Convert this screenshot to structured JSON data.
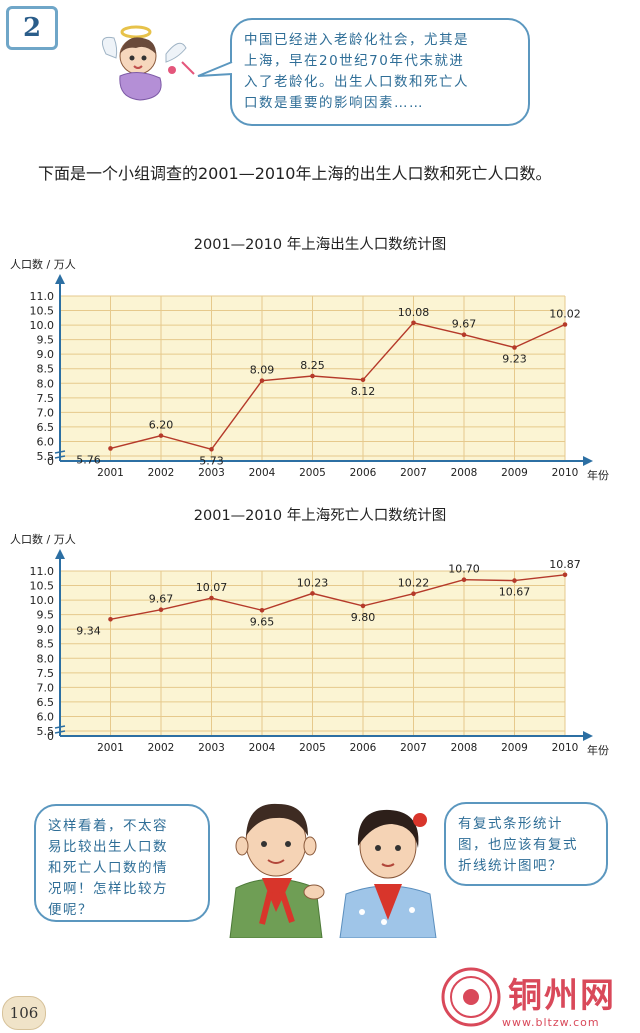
{
  "page": {
    "lesson_number": "2",
    "page_number": "106"
  },
  "top_bubble": {
    "lines": [
      "中国已经进入老龄化社会，尤其是",
      "上海，早在20世纪70年代末就进",
      "入了老龄化。出生人口数和死亡人",
      "口数是重要的影响因素……"
    ]
  },
  "intro_text": "下面是一个小组调查的2001—2010年上海的出生人口数和死亡人口数。",
  "chart_data": [
    {
      "type": "line",
      "title": "2001—2010 年上海出生人口数统计图",
      "ylabel": "人口数 / 万人",
      "xlabel": "年份",
      "categories": [
        "2001",
        "2002",
        "2003",
        "2004",
        "2005",
        "2006",
        "2007",
        "2008",
        "2009",
        "2010"
      ],
      "values": [
        5.76,
        6.2,
        5.73,
        8.09,
        8.25,
        8.12,
        10.08,
        9.67,
        9.23,
        10.02
      ],
      "value_labels": [
        "5.76",
        "6.20",
        "5.73",
        "8.09",
        "8.25",
        "8.12",
        "10.08",
        "9.67",
        "9.23",
        "10.02"
      ],
      "y_ticks": [
        "0",
        "5.5",
        "6.0",
        "6.5",
        "7.0",
        "7.5",
        "8.0",
        "8.5",
        "9.0",
        "9.5",
        "10.0",
        "10.5",
        "11.0"
      ],
      "ylim": [
        5.5,
        11.0
      ],
      "axis_break": true,
      "grid": true,
      "colors": {
        "line": "#b53a2a",
        "grid": "#e6c98c",
        "background": "#fbf4d3",
        "axis": "#2c6fa3"
      }
    },
    {
      "type": "line",
      "title": "2001—2010 年上海死亡人口数统计图",
      "ylabel": "人口数 / 万人",
      "xlabel": "年份",
      "categories": [
        "2001",
        "2002",
        "2003",
        "2004",
        "2005",
        "2006",
        "2007",
        "2008",
        "2009",
        "2010"
      ],
      "values": [
        9.34,
        9.67,
        10.07,
        9.65,
        10.23,
        9.8,
        10.22,
        10.7,
        10.67,
        10.87
      ],
      "value_labels": [
        "9.34",
        "9.67",
        "10.07",
        "9.65",
        "10.23",
        "9.80",
        "10.22",
        "10.70",
        "10.67",
        "10.87"
      ],
      "y_ticks": [
        "0",
        "5.5",
        "6.0",
        "6.5",
        "7.0",
        "7.5",
        "8.0",
        "8.5",
        "9.0",
        "9.5",
        "10.0",
        "10.5",
        "11.0"
      ],
      "ylim": [
        5.5,
        11.0
      ],
      "axis_break": true,
      "grid": true,
      "colors": {
        "line": "#b53a2a",
        "grid": "#e6c98c",
        "background": "#fbf4d3",
        "axis": "#2c6fa3"
      }
    }
  ],
  "left_bubble": {
    "lines": [
      "这样看着，不太容",
      "易比较出生人口数",
      "和死亡人口数的情",
      "况啊！怎样比较方",
      "便呢？"
    ]
  },
  "right_bubble": {
    "lines": [
      "有复式条形统计",
      "图，也应该有复式",
      "折线统计图吧？"
    ]
  },
  "watermark": {
    "name": "铜州网",
    "url": "www.bltzw.com"
  }
}
